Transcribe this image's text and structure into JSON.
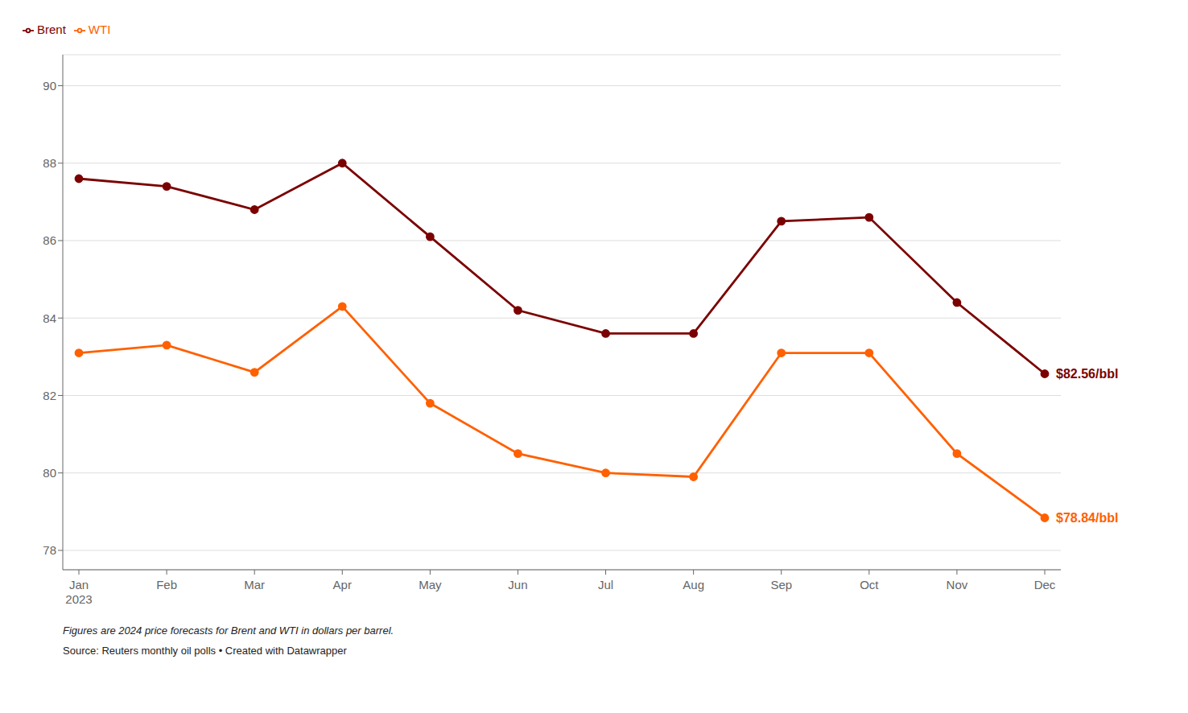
{
  "chart_data": {
    "type": "line",
    "categories": [
      "Jan\n2023",
      "Feb",
      "Mar",
      "Apr",
      "May",
      "Jun",
      "Jul",
      "Aug",
      "Sep",
      "Oct",
      "Nov",
      "Dec"
    ],
    "series": [
      {
        "name": "WTI",
        "color": "#FF6000",
        "marker": "circle",
        "line_style": "solid",
        "end_label": "$78.84/bbl",
        "values": [
          83.1,
          83.3,
          82.6,
          84.3,
          81.8,
          80.5,
          80.0,
          79.9,
          83.1,
          83.1,
          80.5,
          78.84
        ]
      },
      {
        "name": "Brent",
        "color": "#7B0000",
        "marker": "circle",
        "line_style": "solid",
        "end_label": "$82.56/bbl",
        "values": [
          87.6,
          87.4,
          86.8,
          88.0,
          86.1,
          84.2,
          83.6,
          83.6,
          86.5,
          86.6,
          84.4,
          82.56
        ]
      }
    ],
    "ylim": [
      77.5,
      90.8
    ],
    "yticks": [
      78,
      80,
      82,
      84,
      86,
      88,
      90
    ],
    "grid": true,
    "legend": "upper left",
    "note": "Figures are 2024 price forecasts for Brent and WTI in dollars per barrel.",
    "source": "Source: Reuters monthly oil polls • Created with Datawrapper"
  }
}
